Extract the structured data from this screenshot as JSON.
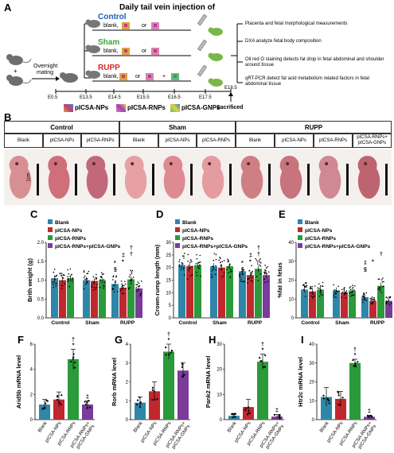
{
  "panelA": {
    "label": "A",
    "title": "Daily tail vein injection of",
    "overnight": "Overnight",
    "mating": "mating",
    "groups": [
      {
        "name": "Control",
        "color": "#1a5fb4",
        "text": "blank,",
        "or": "or"
      },
      {
        "name": "Sham",
        "color": "#3aa63a",
        "text": "blank,",
        "or": "or"
      },
      {
        "name": "RUPP",
        "color": "#d7262b",
        "text": "blank,",
        "or": "or",
        "plus": "+"
      }
    ],
    "timepoints": [
      "E0.5",
      "E13.5",
      "E14.5",
      "E15.5",
      "E16.5",
      "E17.5",
      "E18.5"
    ],
    "sacrificed": "Sacrificed",
    "outcomes": [
      "Placenta and fetal morphological measurements",
      "DXA analyze fetal body composition",
      "Oil red O staining detects fat drop in fetal abdominal and shoulder around tissue",
      "qRT-PCR detect fat acid metabolism related factors in fetal abdominal tissue"
    ],
    "legend": [
      "pICSA-NPs",
      "pICSA-RNPs",
      "pICSA-GNPs"
    ]
  },
  "panelB": {
    "label": "B",
    "groups": [
      "Control",
      "Sham",
      "RUPP"
    ],
    "subs": [
      "Blank",
      "pICSA-NPs",
      "pICSA-RNPs",
      "Blank",
      "pICSA-NPs",
      "pICSA-RNPs",
      "Blank",
      "pICSA-NPs",
      "pICSA-RNPs",
      "pICSA-RNPs+ pICSA-GNPs"
    ],
    "scale": "1cm"
  },
  "legend4": [
    "Blank",
    "pICSA-NPs",
    "pICSA-RNPs",
    "pICSA-RNPs+pICSA-GNPs"
  ],
  "colors": {
    "blank": "#2e86a8",
    "nps": "#c0282e",
    "rnps": "#2a9a3a",
    "gnps": "#7b3b9a"
  },
  "chart_data": [
    {
      "id": "C",
      "type": "bar",
      "ylabel": "Brith weight (g)",
      "ylim": [
        0,
        2.0
      ],
      "yticks": [
        "0.0",
        "0.5",
        "1.0",
        "1.5",
        "2.0"
      ],
      "categories": [
        "Control",
        "Sham",
        "RUPP"
      ],
      "series": [
        {
          "name": "Blank",
          "values": [
            1.05,
            1.0,
            0.9
          ]
        },
        {
          "name": "pICSA-NPs",
          "values": [
            1.0,
            0.98,
            0.8
          ]
        },
        {
          "name": "pICSA-RNPs",
          "values": [
            1.05,
            1.0,
            1.02
          ]
        },
        {
          "name": "pICSA-RNPs+pICSA-GNPs",
          "values": [
            null,
            null,
            0.78
          ]
        }
      ],
      "annotations": [
        "§",
        "*",
        "†",
        "*",
        "‡",
        "†"
      ]
    },
    {
      "id": "D",
      "type": "bar",
      "ylabel": "Crown-rump length (mm)",
      "ylim": [
        0,
        30
      ],
      "yticks": [
        "0",
        "5",
        "10",
        "15",
        "20",
        "25",
        "30"
      ],
      "categories": [
        "Control",
        "Sham",
        "RUPP"
      ],
      "series": [
        {
          "name": "Blank",
          "values": [
            21,
            20.5,
            18.5
          ]
        },
        {
          "name": "pICSA-NPs",
          "values": [
            20.5,
            20,
            17
          ]
        },
        {
          "name": "pICSA-RNPs",
          "values": [
            21,
            20.5,
            19.5
          ]
        },
        {
          "name": "pICSA-RNPs+pICSA-GNPs",
          "values": [
            null,
            null,
            17
          ]
        }
      ],
      "annotations": [
        "§",
        "*",
        "†",
        "*",
        "‡",
        "†"
      ]
    },
    {
      "id": "E",
      "type": "bar",
      "ylabel": "%fat in fetus",
      "ylim": [
        0,
        40
      ],
      "yticks": [
        "0",
        "10",
        "20",
        "30",
        "40"
      ],
      "categories": [
        "Control",
        "Sham",
        "RUPP"
      ],
      "series": [
        {
          "name": "Blank",
          "values": [
            15,
            14.5,
            11
          ]
        },
        {
          "name": "pICSA-NPs",
          "values": [
            14,
            13.5,
            9
          ]
        },
        {
          "name": "pICSA-RNPs",
          "values": [
            15,
            14.5,
            17
          ]
        },
        {
          "name": "pICSA-RNPs+pICSA-GNPs",
          "values": [
            null,
            null,
            9
          ]
        }
      ],
      "annotations": [
        "§",
        "*",
        "†",
        "‡"
      ]
    },
    {
      "id": "F",
      "type": "bar",
      "ylabel": "Arid5b mRNA level",
      "ylim": [
        0,
        6
      ],
      "yticks": [
        "0",
        "2",
        "4",
        "6"
      ],
      "categories": [
        "Blank",
        "pICSA-NPs",
        "pICSA-RNPs",
        "pICSA-RNPs+ pICSA-GNPs"
      ],
      "values": [
        1.2,
        1.6,
        4.8,
        1.2
      ],
      "errors": [
        0.4,
        0.6,
        0.8,
        0.3
      ],
      "annotations": [
        "†",
        "*",
        "‡"
      ]
    },
    {
      "id": "G",
      "type": "bar",
      "ylabel": "Rorb mRNA level",
      "ylim": [
        0,
        4
      ],
      "yticks": [
        "0",
        "1",
        "2",
        "3",
        "4"
      ],
      "categories": [
        "Blank",
        "pICSA-NPs",
        "pICSA-RNPs",
        "pICSA-RNPs+ pICSA-GNPs"
      ],
      "values": [
        0.9,
        1.5,
        3.6,
        2.6
      ],
      "errors": [
        0.3,
        0.5,
        0.4,
        0.4
      ],
      "annotations": [
        "†",
        "*"
      ]
    },
    {
      "id": "H",
      "type": "bar",
      "ylabel": "Pank2 mRNA level",
      "ylim": [
        0,
        30
      ],
      "yticks": [
        "0",
        "10",
        "20",
        "30"
      ],
      "categories": [
        "Blank",
        "pICSA-NPs",
        "pICSA-RNPs",
        "pICSA-RNPs+ pICSA-GNPs"
      ],
      "values": [
        1.5,
        5,
        23,
        1.2
      ],
      "errors": [
        1,
        3,
        3,
        0.8
      ],
      "annotations": [
        "†",
        "*",
        "‡"
      ]
    },
    {
      "id": "I",
      "type": "bar",
      "ylabel": "Htr2c mRNA level",
      "ylim": [
        0,
        40
      ],
      "yticks": [
        "0",
        "10",
        "20",
        "30",
        "40"
      ],
      "categories": [
        "Blank",
        "pICSA-NPs",
        "pICSA-RNPs",
        "pICSA-RNPs+ pICSA-GNPs"
      ],
      "values": [
        12,
        11,
        30,
        1.5
      ],
      "errors": [
        5,
        4,
        2,
        0.8
      ],
      "annotations": [
        "†",
        "*",
        "‡"
      ]
    }
  ]
}
